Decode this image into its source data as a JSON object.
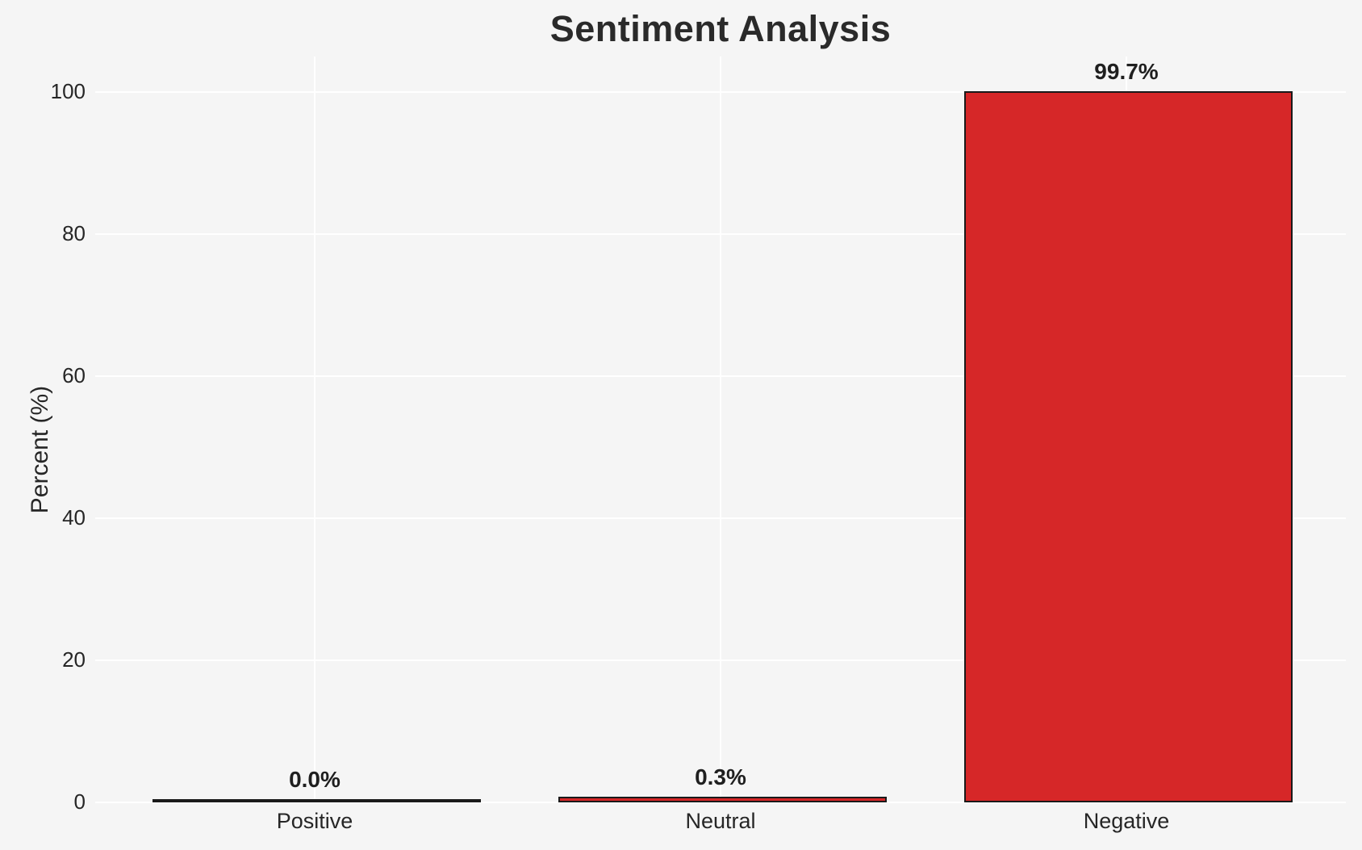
{
  "chart_data": {
    "type": "bar",
    "title": "Sentiment Analysis",
    "xlabel": "",
    "ylabel": "Percent (%)",
    "categories": [
      "Positive",
      "Neutral",
      "Negative"
    ],
    "values": [
      0.0,
      0.3,
      99.7
    ],
    "value_labels": [
      "0.0%",
      "0.3%",
      "99.7%"
    ],
    "yticks": [
      0,
      20,
      40,
      60,
      80,
      100
    ],
    "ylim": [
      0,
      105
    ],
    "grid": "both",
    "legend": "none",
    "colors": {
      "bar_fill": "#d62728",
      "bar_edge": "#1a1a1a",
      "background": "#f5f5f5",
      "gridline": "#ffffff",
      "text": "#262626"
    }
  }
}
